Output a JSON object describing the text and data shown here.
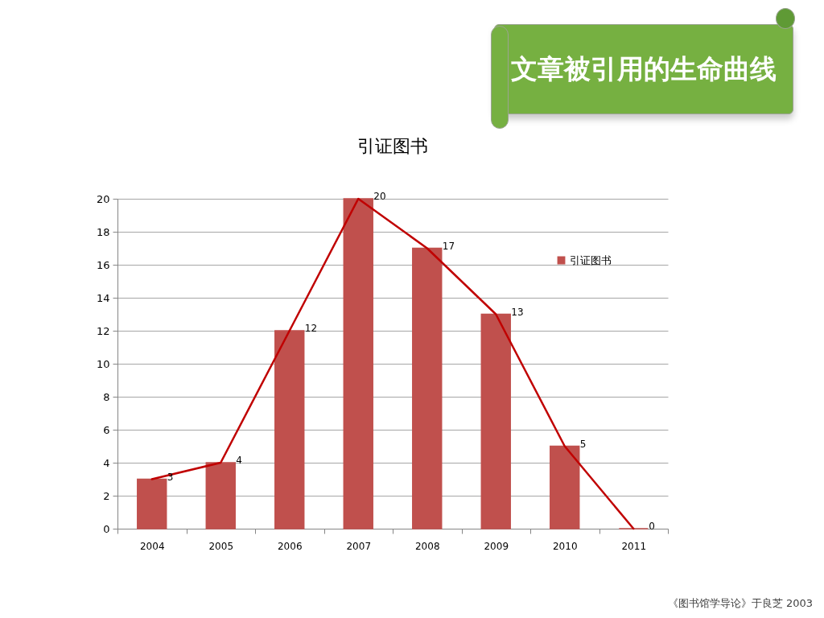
{
  "chart_data": {
    "type": "bar",
    "title": "文章被引用的生命曲线",
    "subtitle": "引证图书",
    "categories": [
      "2004",
      "2005",
      "2006",
      "2007",
      "2008",
      "2009",
      "2010",
      "2011"
    ],
    "series": [
      {
        "name": "引证图书",
        "type": "bar",
        "color": "#c0504d",
        "values": [
          3,
          4,
          12,
          20,
          17,
          13,
          5,
          0
        ],
        "value_labels": [
          "3",
          "4",
          "12",
          "20",
          "17",
          "13",
          "5",
          "0"
        ]
      },
      {
        "type": "line",
        "color": "#c00000",
        "values": [
          3,
          4,
          12,
          20,
          17,
          13,
          5,
          0
        ]
      }
    ],
    "ylim": [
      0,
      20
    ],
    "yticks": [
      0,
      2,
      4,
      6,
      8,
      10,
      12,
      14,
      16,
      18,
      20
    ],
    "grid": "y",
    "legend": "top right",
    "annotations": [
      "《图书馆学导论》于良芝 2003"
    ]
  }
}
